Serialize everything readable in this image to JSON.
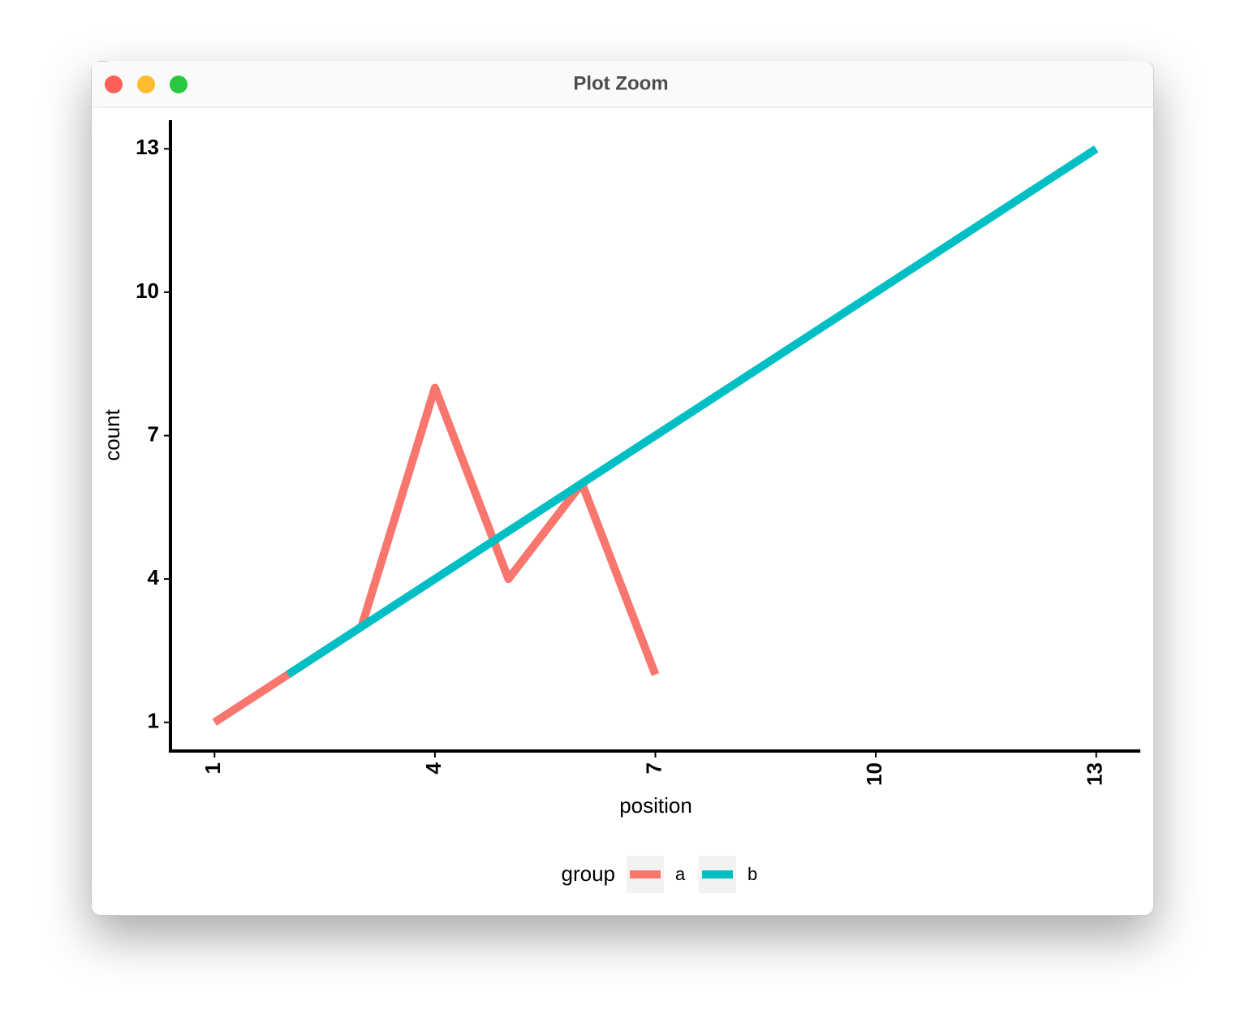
{
  "window": {
    "title": "Plot Zoom"
  },
  "chart_data": {
    "type": "line",
    "x_label": "position",
    "y_label": "count",
    "legend_title": "group",
    "xlim": [
      0.4,
      13.6
    ],
    "ylim": [
      0.4,
      13.6
    ],
    "xticks": [
      1,
      4,
      7,
      10,
      13
    ],
    "yticks": [
      1,
      4,
      7,
      10,
      13
    ],
    "grid": false,
    "legend_position": "bottom",
    "series": [
      {
        "name": "a",
        "color": "#f8766d",
        "x": [
          1,
          2,
          3,
          4,
          5,
          6,
          7
        ],
        "values": [
          1,
          2,
          3,
          8,
          4,
          6,
          2
        ]
      },
      {
        "name": "b",
        "color": "#00bfc4",
        "x": [
          2,
          3,
          4,
          5,
          6,
          7,
          8,
          9,
          10,
          11,
          12,
          13
        ],
        "values": [
          2,
          3,
          4,
          5,
          6,
          7,
          8,
          9,
          10,
          11,
          12,
          13
        ]
      }
    ]
  }
}
